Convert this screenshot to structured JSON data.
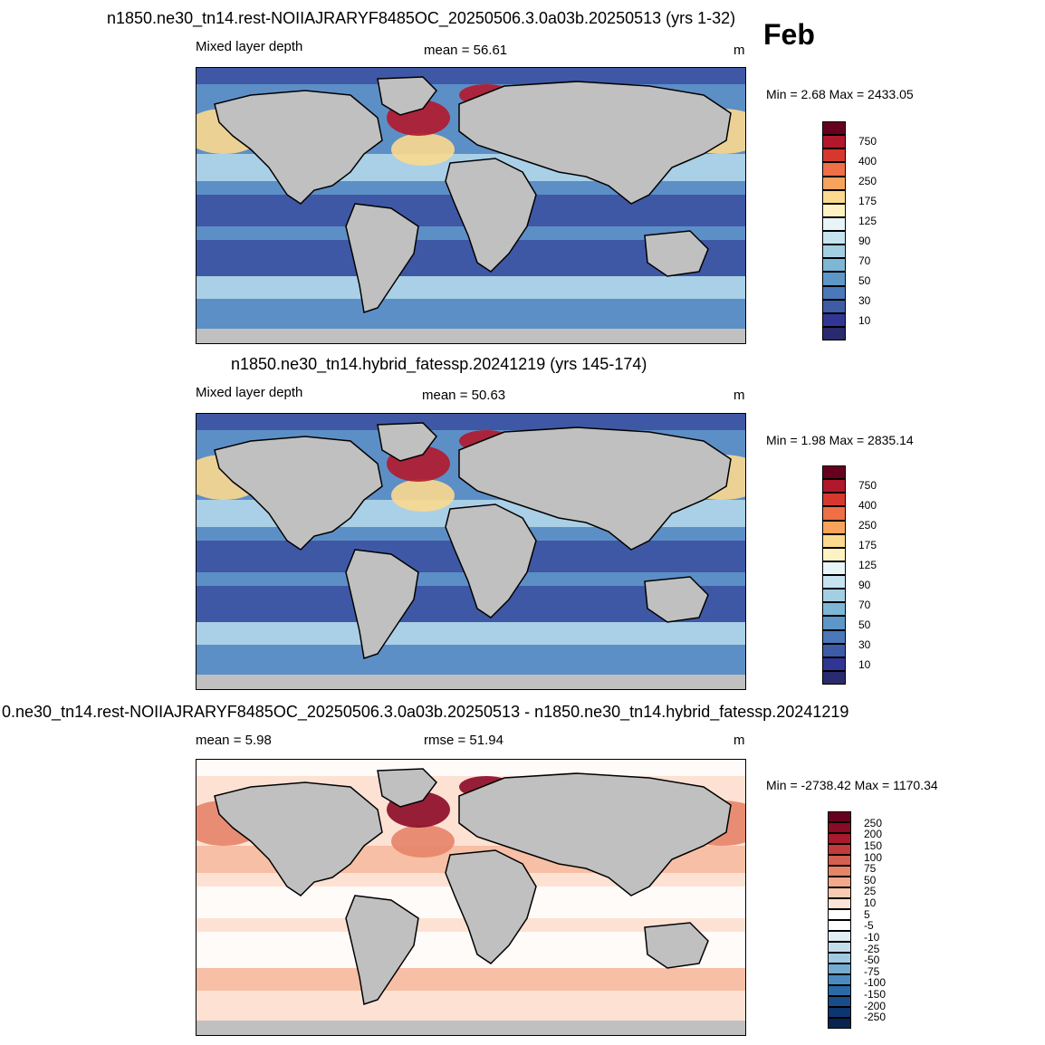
{
  "month": "Feb",
  "panels": [
    {
      "title": "n1850.ne30_tn14.rest-NOIIAJRARYF8485OC_20250506.3.0a03b.20250513 (yrs 1-32)",
      "left_label": "Mixed layer depth",
      "center_label": "mean =  56.61",
      "units": "m",
      "minmax": "Min =   2.68 Max = 2433.05",
      "colorbar_labels": [
        "750",
        "400",
        "250",
        "175",
        "125",
        "90",
        "70",
        "50",
        "30",
        "10"
      ],
      "colorbar_colors": [
        "#67001f",
        "#b2182b",
        "#d6382e",
        "#ef6f46",
        "#f7a35c",
        "#fbd98e",
        "#fdf3c2",
        "#e8f4f8",
        "#c6e3ef",
        "#a3cfe3",
        "#7eb6d6",
        "#5d97c8",
        "#4a78b8",
        "#3e5ba5",
        "#313695",
        "#2a2a6e"
      ],
      "map_palette": {
        "ocean_low": "#3a4f9f",
        "ocean_mid": "#5d8fc7",
        "ocean_high": "#b7dcec",
        "warm": "#fbd98e",
        "hot": "#b2182b",
        "land": "#c0c0c0"
      }
    },
    {
      "title": "n1850.ne30_tn14.hybrid_fatessp.20241219 (yrs 145-174)",
      "left_label": "Mixed layer depth",
      "center_label": "mean =  50.63",
      "units": "m",
      "minmax": "Min =   1.98 Max = 2835.14",
      "colorbar_labels": [
        "750",
        "400",
        "250",
        "175",
        "125",
        "90",
        "70",
        "50",
        "30",
        "10"
      ],
      "colorbar_colors": [
        "#67001f",
        "#b2182b",
        "#d6382e",
        "#ef6f46",
        "#f7a35c",
        "#fbd98e",
        "#fdf3c2",
        "#e8f4f8",
        "#c6e3ef",
        "#a3cfe3",
        "#7eb6d6",
        "#5d97c8",
        "#4a78b8",
        "#3e5ba5",
        "#313695",
        "#2a2a6e"
      ],
      "map_palette": {
        "ocean_low": "#3a4f9f",
        "ocean_mid": "#5d8fc7",
        "ocean_high": "#b7dcec",
        "warm": "#fbd98e",
        "hot": "#b2182b",
        "land": "#c0c0c0"
      }
    },
    {
      "title": "0.ne30_tn14.rest-NOIIAJRARYF8485OC_20250506.3.0a03b.20250513 - n1850.ne30_tn14.hybrid_fatessp.20241219",
      "left_label": "mean =  5.98",
      "center_label": "rmse =  51.94",
      "units": "m",
      "minmax": "Min = -2738.42 Max = 1170.34",
      "colorbar_labels": [
        "250",
        "200",
        "150",
        "100",
        "75",
        "50",
        "25",
        "10",
        "5",
        "-5",
        "-10",
        "-25",
        "-50",
        "-75",
        "-100",
        "-150",
        "-200",
        "-250"
      ],
      "colorbar_colors": [
        "#67001f",
        "#8b0a26",
        "#a8192d",
        "#c13b3b",
        "#d55f4e",
        "#e68468",
        "#f2a98a",
        "#f8cbb0",
        "#fce5d6",
        "#ffffff",
        "#ffffff",
        "#e1ecf4",
        "#c3ddec",
        "#9fcae1",
        "#74abd1",
        "#4b8bc0",
        "#2b6aa7",
        "#174d8b",
        "#0d3570",
        "#08254f"
      ],
      "map_palette": {
        "ocean_low": "#ffffff",
        "ocean_mid": "#fde2d4",
        "ocean_high": "#f6b89c",
        "warm": "#e68468",
        "hot": "#8b0a26",
        "land": "#c0c0c0"
      }
    }
  ]
}
